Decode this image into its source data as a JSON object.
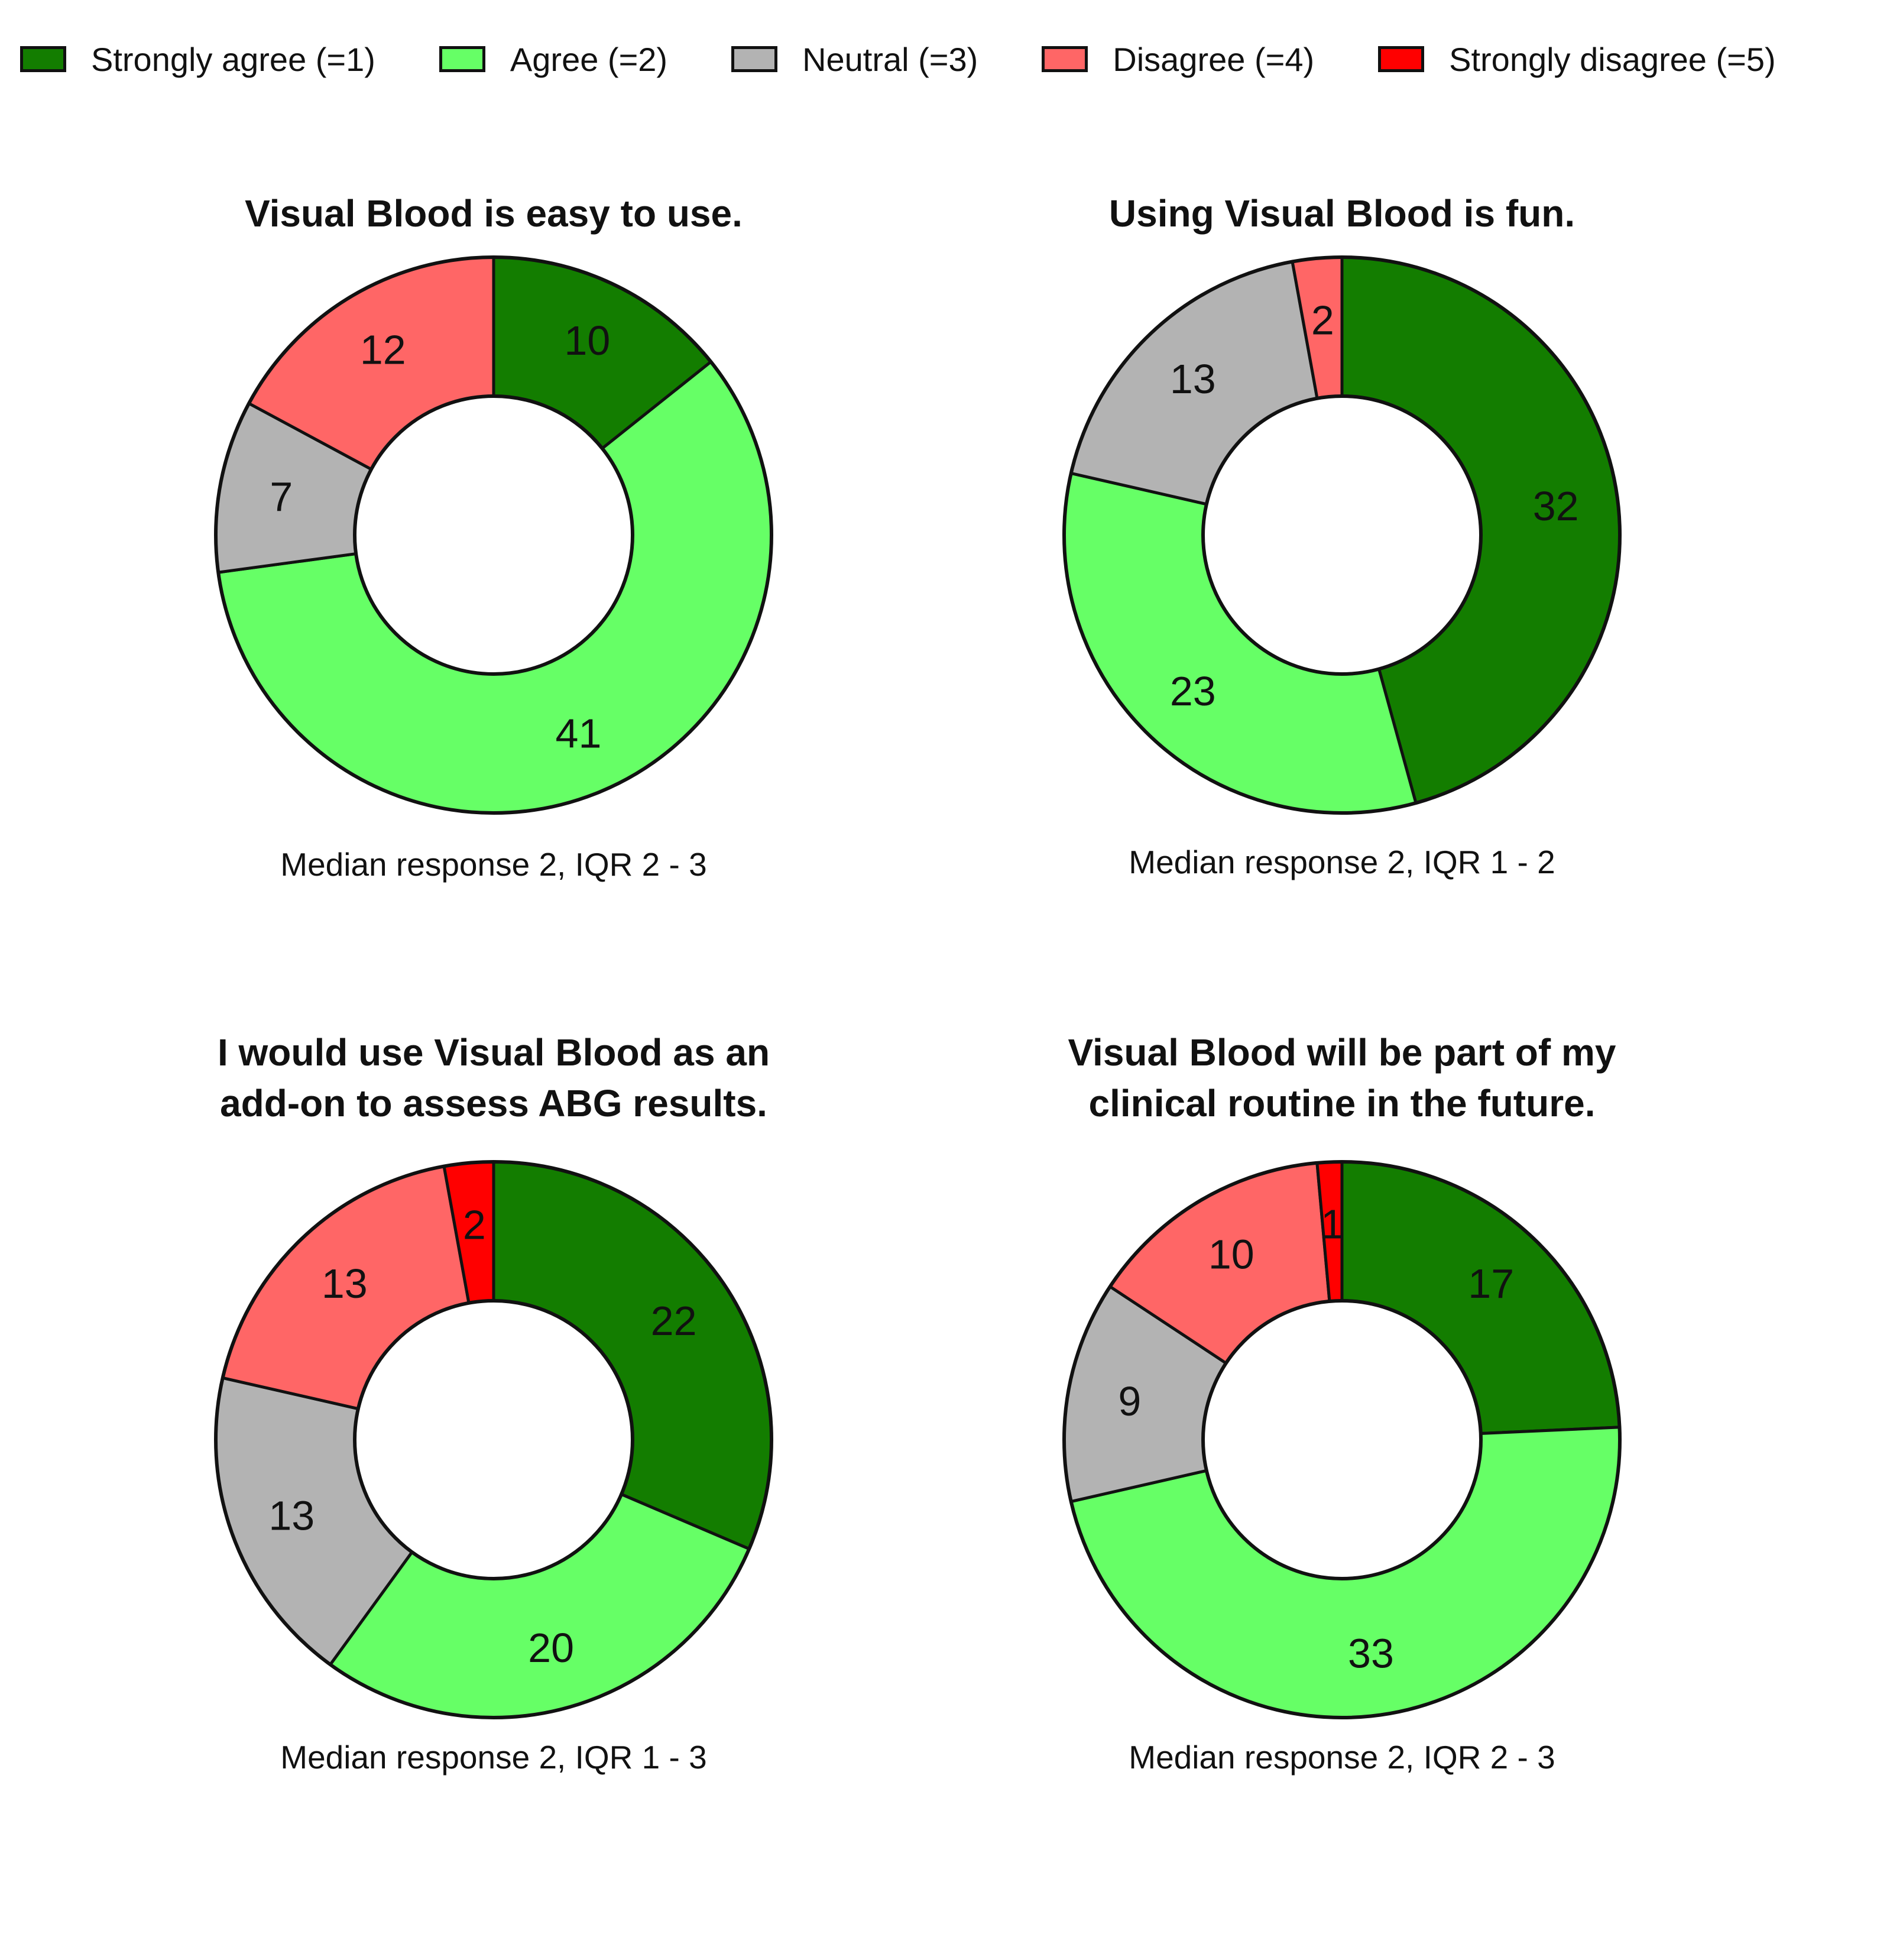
{
  "legend": [
    {
      "label": "Strongly agree (=1)",
      "color": "#137d00"
    },
    {
      "label": "Agree (=2)",
      "color": "#66ff66"
    },
    {
      "label": "Neutral (=3)",
      "color": "#b3b3b3"
    },
    {
      "label": "Disagree (=4)",
      "color": "#ff6666"
    },
    {
      "label": "Strongly disagree (=5)",
      "color": "#ff0000"
    }
  ],
  "chart_data": [
    {
      "type": "pie",
      "subtype": "donut",
      "title": "Visual Blood is easy to use.",
      "title_lines": [
        "Visual Blood is easy to use."
      ],
      "categories": [
        "Strongly agree (=1)",
        "Agree (=2)",
        "Neutral (=3)",
        "Disagree (=4)",
        "Strongly disagree (=5)"
      ],
      "values": [
        10,
        41,
        7,
        12,
        0
      ],
      "value_labels": [
        "10",
        "41",
        "7",
        "12",
        ""
      ],
      "caption": "Median response 2, IQR 2 - 3"
    },
    {
      "type": "pie",
      "subtype": "donut",
      "title": "Using Visual Blood is fun.",
      "title_lines": [
        "Using Visual Blood is fun."
      ],
      "categories": [
        "Strongly agree (=1)",
        "Agree (=2)",
        "Neutral (=3)",
        "Disagree (=4)",
        "Strongly disagree (=5)"
      ],
      "values": [
        32,
        23,
        13,
        2,
        0
      ],
      "value_labels": [
        "32",
        "23",
        "13",
        "2",
        ""
      ],
      "caption": "Median response 2, IQR 1 - 2"
    },
    {
      "type": "pie",
      "subtype": "donut",
      "title": "I would use Visual Blood as an add-on to assess ABG results.",
      "title_lines": [
        "I would use Visual Blood as an",
        "add-on to assess ABG results."
      ],
      "categories": [
        "Strongly agree (=1)",
        "Agree (=2)",
        "Neutral (=3)",
        "Disagree (=4)",
        "Strongly disagree (=5)"
      ],
      "values": [
        22,
        20,
        13,
        13,
        2
      ],
      "value_labels": [
        "22",
        "20",
        "13",
        "13",
        "2"
      ],
      "caption": "Median response 2, IQR 1 - 3"
    },
    {
      "type": "pie",
      "subtype": "donut",
      "title": "Visual Blood will be part of my clinical routine in the future.",
      "title_lines": [
        "Visual Blood will be part of my",
        "clinical routine in the future."
      ],
      "categories": [
        "Strongly agree (=1)",
        "Agree (=2)",
        "Neutral (=3)",
        "Disagree (=4)",
        "Strongly disagree (=5)"
      ],
      "values": [
        17,
        33,
        9,
        10,
        1
      ],
      "value_labels": [
        "17",
        "33",
        "9",
        "10",
        "1"
      ],
      "caption": "Median response 2, IQR 2 - 3"
    }
  ]
}
